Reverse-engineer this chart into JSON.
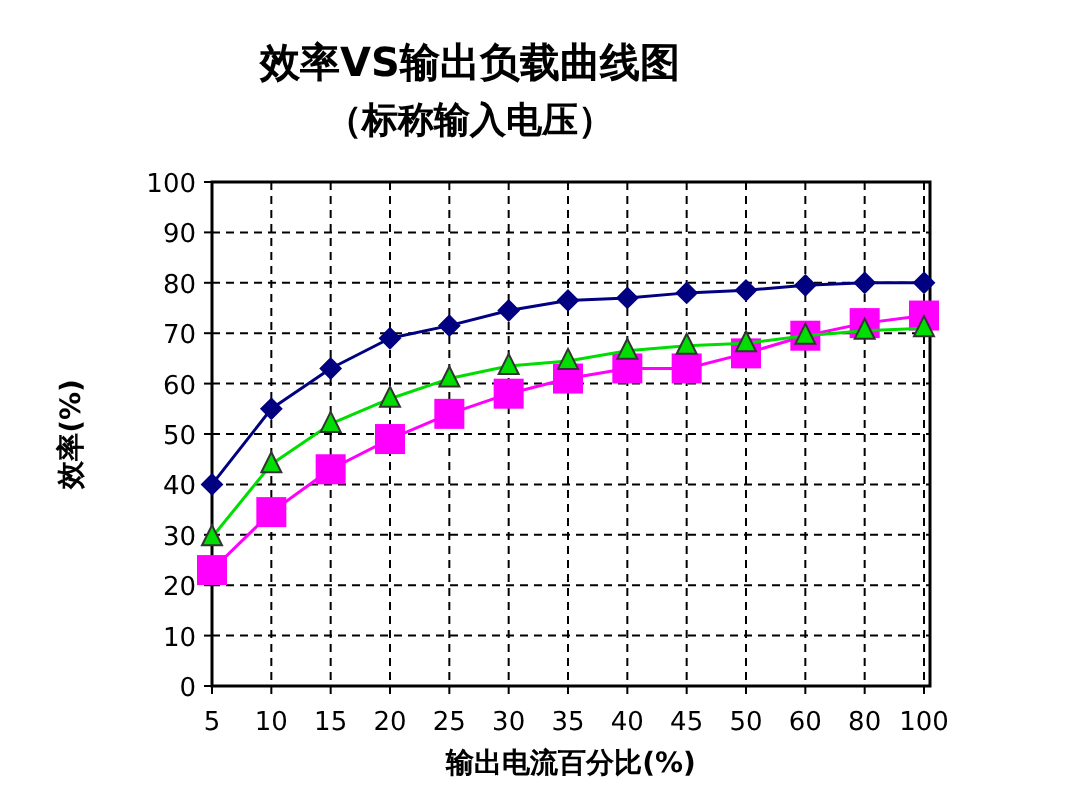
{
  "chart_data": {
    "type": "line",
    "title": "效率VS输出负载曲线图",
    "subtitle": "（标称输入电压）",
    "xlabel": "输出电流百分比(%)",
    "ylabel": "效率(%)",
    "categories": [
      "5",
      "10",
      "15",
      "20",
      "25",
      "30",
      "35",
      "40",
      "45",
      "50",
      "60",
      "80",
      "100"
    ],
    "series": [
      {
        "color": "#000080",
        "marker": "diamond",
        "values": [
          40,
          55,
          63,
          69,
          71.5,
          74.5,
          76.5,
          77,
          78,
          78.5,
          79.5,
          80,
          80
        ]
      },
      {
        "color": "#ff00ff",
        "marker": "square",
        "values": [
          23,
          34.5,
          43,
          49,
          54,
          58,
          61,
          63,
          63,
          66,
          69.5,
          72,
          73.5
        ]
      },
      {
        "color": "#00dd00",
        "marker": "triangle",
        "values": [
          29.5,
          44,
          52,
          57,
          61,
          63.5,
          64.5,
          66.5,
          67.5,
          68,
          69.5,
          70.5,
          71
        ]
      }
    ],
    "ylim": [
      0,
      100
    ],
    "yticks": [
      0,
      10,
      20,
      30,
      40,
      50,
      60,
      70,
      80,
      90,
      100
    ],
    "grid": true,
    "line_style": "solid"
  }
}
